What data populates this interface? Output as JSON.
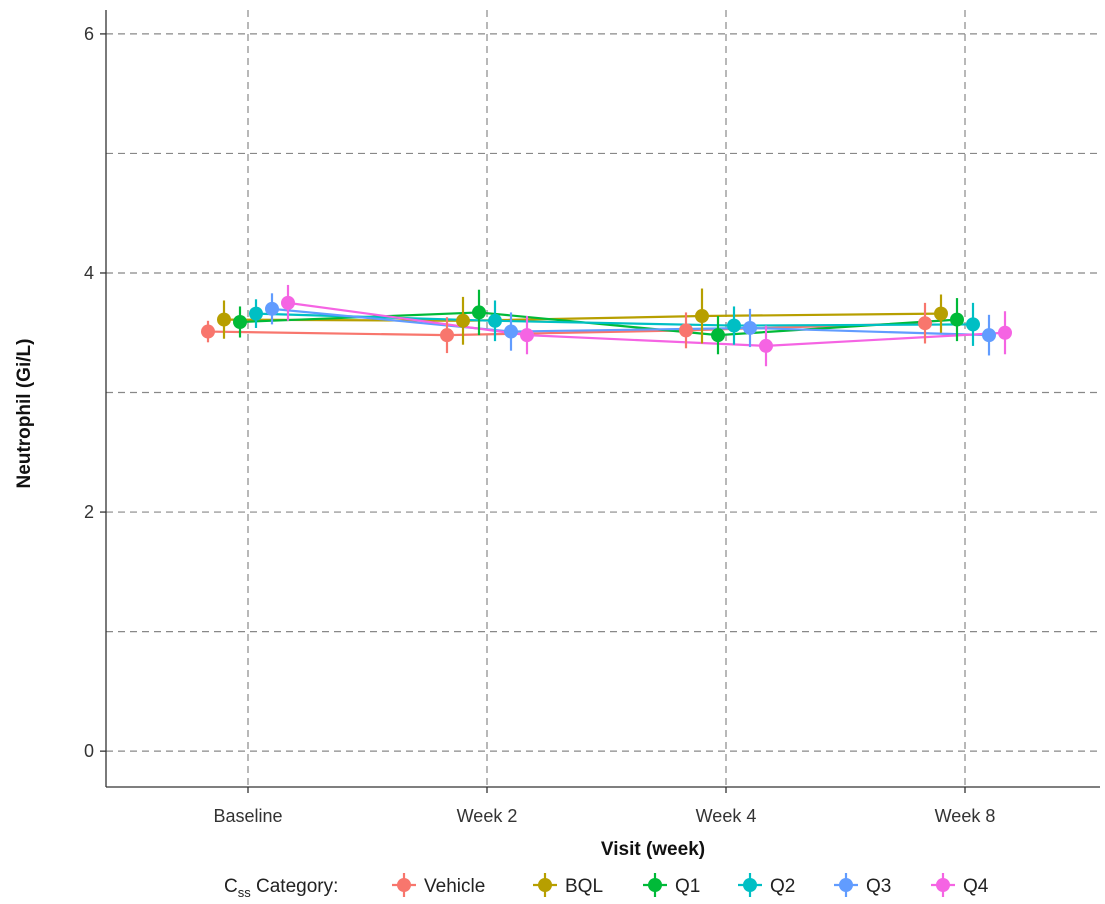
{
  "chart_data": {
    "type": "line",
    "xlabel": "Visit (week)",
    "ylabel": "Neutrophil (Gi/L)",
    "categories": [
      "Baseline",
      "Week 2",
      "Week 4",
      "Week 8"
    ],
    "ylim": [
      -0.3,
      6.2
    ],
    "yticks": [
      0,
      2,
      4,
      6
    ],
    "ygrid": [
      0,
      1,
      2,
      3,
      4,
      5,
      6
    ],
    "grid": true,
    "error_bars": true,
    "legend": {
      "position": "bottom",
      "title_main": "C",
      "title_sub": "ss",
      "title_rest": " Category:"
    },
    "series": [
      {
        "name": "Vehicle",
        "color": "#F8766D",
        "values": [
          3.51,
          3.48,
          3.52,
          3.58
        ],
        "err": [
          0.09,
          0.15,
          0.15,
          0.17
        ]
      },
      {
        "name": "BQL",
        "color": "#B79F00",
        "values": [
          3.61,
          3.6,
          3.64,
          3.66
        ],
        "err": [
          0.16,
          0.2,
          0.23,
          0.16
        ]
      },
      {
        "name": "Q1",
        "color": "#00BA38",
        "values": [
          3.59,
          3.67,
          3.48,
          3.61
        ],
        "err": [
          0.13,
          0.19,
          0.16,
          0.18
        ]
      },
      {
        "name": "Q2",
        "color": "#00BFC4",
        "values": [
          3.66,
          3.6,
          3.56,
          3.57
        ],
        "err": [
          0.12,
          0.17,
          0.16,
          0.18
        ]
      },
      {
        "name": "Q3",
        "color": "#619CFF",
        "values": [
          3.7,
          3.51,
          3.54,
          3.48
        ],
        "err": [
          0.13,
          0.16,
          0.16,
          0.17
        ]
      },
      {
        "name": "Q4",
        "color": "#F564E3",
        "values": [
          3.75,
          3.48,
          3.39,
          3.5
        ],
        "err": [
          0.15,
          0.16,
          0.17,
          0.18
        ]
      }
    ]
  }
}
